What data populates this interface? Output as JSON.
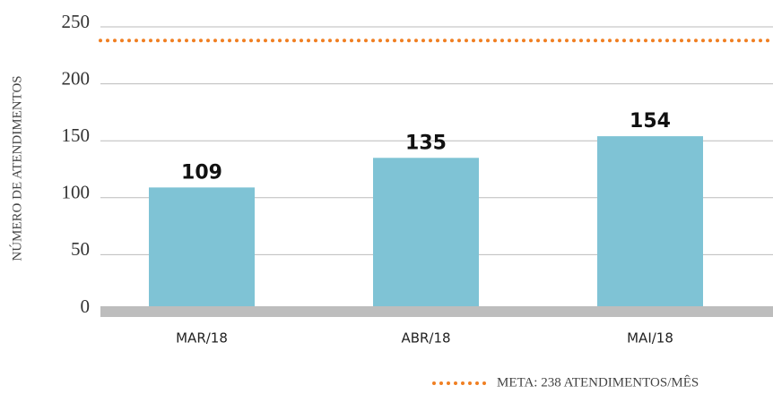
{
  "chart_data": {
    "type": "bar",
    "y_label": "NÚMERO DE ATENDIMENTOS",
    "categories": [
      "MAR/18",
      "ABR/18",
      "MAI/18"
    ],
    "values": [
      109,
      135,
      154
    ],
    "color": "#7fc3d5",
    "ylim": [
      0,
      250
    ],
    "yticks": [
      0,
      50,
      100,
      150,
      200,
      250
    ],
    "grid": true,
    "target": {
      "name": "META: 238 ATENDIMENTOS/MÊS",
      "value": 238,
      "color": "#f07f22"
    }
  }
}
